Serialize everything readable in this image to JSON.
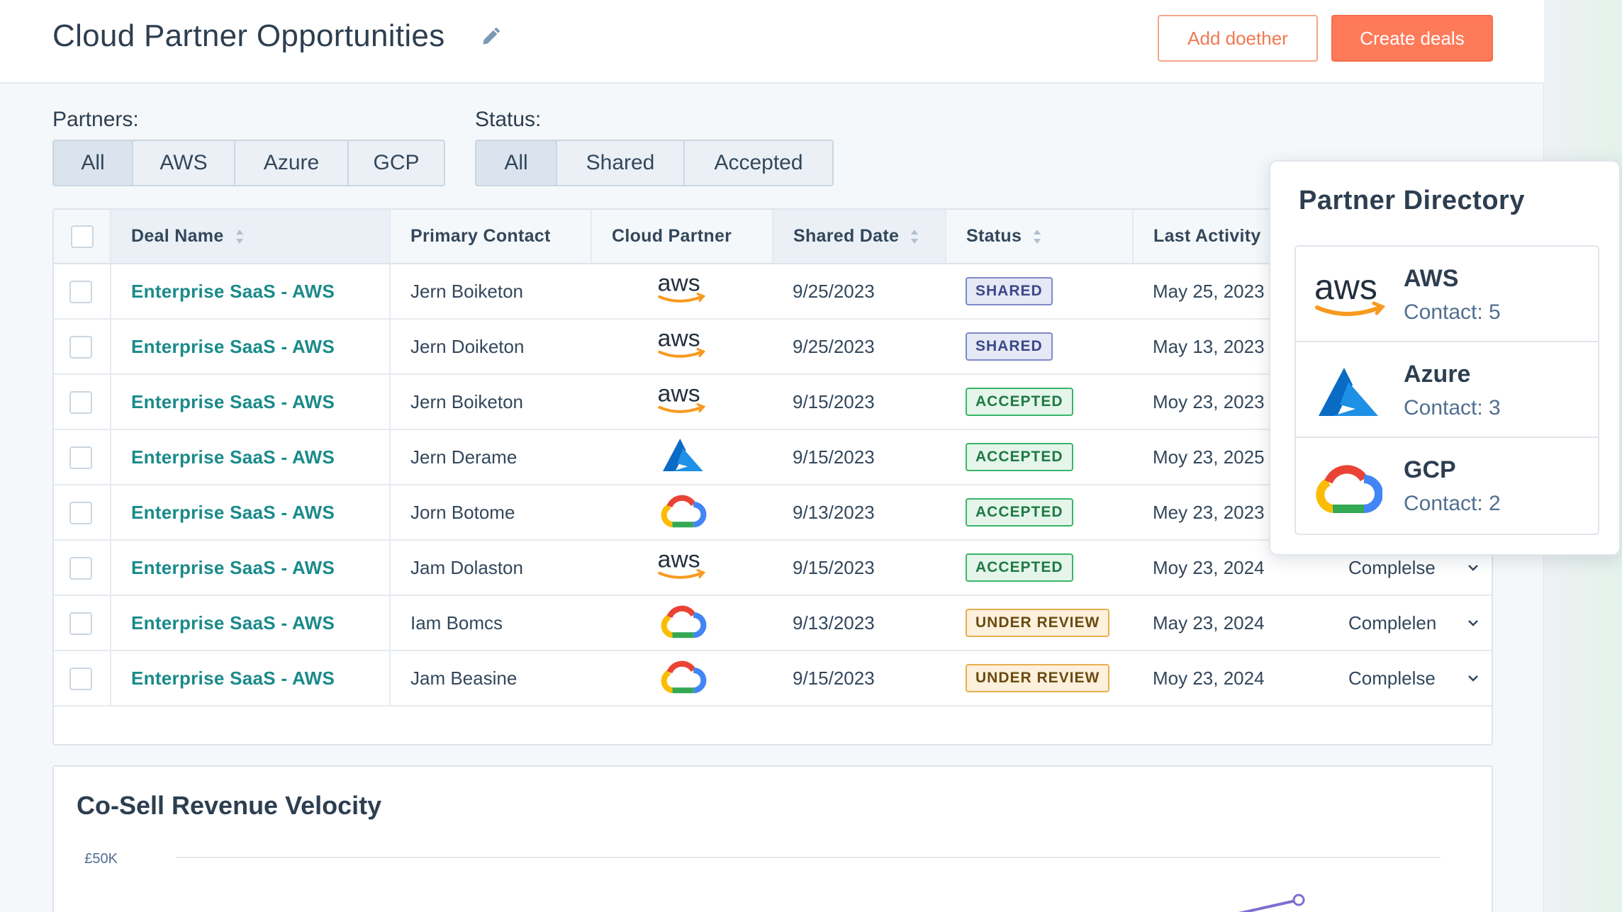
{
  "header": {
    "title": "Cloud Partner Opportunities",
    "secondary_button": "Add doether",
    "primary_button": "Create deals"
  },
  "filters": {
    "partners_label": "Partners:",
    "partners": [
      "All",
      "AWS",
      "Azure",
      "GCP"
    ],
    "partners_active": "All",
    "status_label": "Status:",
    "statuses": [
      "All",
      "Shared",
      "Accepted"
    ],
    "status_active": "All"
  },
  "table": {
    "columns": {
      "deal_name": "Deal Name",
      "primary_contact": "Primary Contact",
      "cloud_partner": "Cloud Partner",
      "shared_date": "Shared Date",
      "status": "Status",
      "last_activity": "Last Activity"
    },
    "rows": [
      {
        "deal": "Enterprise SaaS - AWS",
        "contact": "Jern Boiketon",
        "partner_icon": "aws-logo-icon",
        "date": "9/25/2023",
        "status": "SHARED",
        "status_kind": "shared",
        "activity": "May 25, 2023",
        "stage": ""
      },
      {
        "deal": "Enterprise SaaS - AWS",
        "contact": "Jern Doiketon",
        "partner_icon": "aws-logo-icon",
        "date": "9/25/2023",
        "status": "SHARED",
        "status_kind": "shared",
        "activity": "May 13, 2023",
        "stage": ""
      },
      {
        "deal": "Enterprise SaaS - AWS",
        "contact": "Jern Boiketon",
        "partner_icon": "aws-logo-icon",
        "date": "9/15/2023",
        "status": "ACCEPTED",
        "status_kind": "accepted",
        "activity": "Moy 23, 2023",
        "stage": ""
      },
      {
        "deal": "Enterprise SaaS - AWS",
        "contact": "Jern Derame",
        "partner_icon": "azure-logo-icon",
        "date": "9/15/2023",
        "status": "ACCEPTED",
        "status_kind": "accepted",
        "activity": "Moy 23, 2025",
        "stage": ""
      },
      {
        "deal": "Enterprise SaaS - AWS",
        "contact": "Jorn Botome",
        "partner_icon": "gcp-logo-icon",
        "date": "9/13/2023",
        "status": "ACCEPTED",
        "status_kind": "accepted",
        "activity": "Mey 23, 2023",
        "stage": ""
      },
      {
        "deal": "Enterprise SaaS - AWS",
        "contact": "Jam Dolaston",
        "partner_icon": "aws-logo-icon",
        "date": "9/15/2023",
        "status": "ACCEPTED",
        "status_kind": "accepted",
        "activity": "Moy 23, 2024",
        "stage": "Complelse"
      },
      {
        "deal": "Enterprise SaaS - AWS",
        "contact": "Iam Bomcs",
        "partner_icon": "gcp-logo-icon",
        "date": "9/13/2023",
        "status": "UNDER REVIEW",
        "status_kind": "review",
        "activity": "May 23, 2024",
        "stage": "Complelen"
      },
      {
        "deal": "Enterprise SaaS - AWS",
        "contact": "Jam Beasine",
        "partner_icon": "gcp-logo-icon",
        "date": "9/15/2023",
        "status": "UNDER REVIEW",
        "status_kind": "review",
        "activity": "Moy 23, 2024",
        "stage": "Complelse"
      }
    ]
  },
  "chart": {
    "title": "Co-Sell Revenue Velocity",
    "chart_data": {
      "type": "line",
      "title": "Co-Sell Revenue Velocity",
      "y_ticks": [
        "£50K"
      ],
      "ylabel": "",
      "xlabel": "",
      "grid": true
    }
  },
  "partner_directory": {
    "title": "Partner Directory",
    "items": [
      {
        "name": "AWS",
        "contacts": "Contact: 5",
        "icon": "aws-logo-icon"
      },
      {
        "name": "Azure",
        "contacts": "Contact: 3",
        "icon": "azure-logo-icon"
      },
      {
        "name": "GCP",
        "contacts": "Contact: 2",
        "icon": "gcp-logo-icon"
      }
    ]
  },
  "colors": {
    "accent": "#ff7a59",
    "link": "#1a8a8a",
    "aws_orange": "#f79a1f",
    "azure_blue": "#0a6bc4"
  }
}
